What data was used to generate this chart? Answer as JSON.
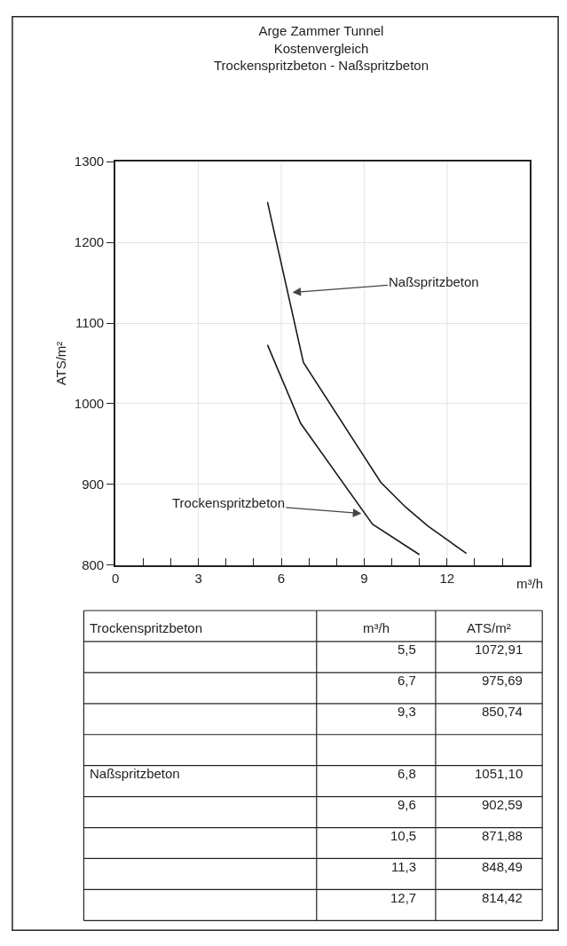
{
  "chart_data": [
    {
      "type": "line",
      "title": "Arge Zammer Tunnel\nKostenvergleich\nTrockenspritzbeton - Naßspritzbeton",
      "xlabel": "m³/h",
      "ylabel": "ATS/m²",
      "series": [
        {
          "color": "#1a1a1a",
          "x": [
            5.5,
            6.7,
            9.3,
            11.0
          ],
          "values": [
            1072.91,
            975.69,
            850.74,
            813
          ]
        },
        {
          "color": "#1a1a1a",
          "x": [
            5.5,
            6.8,
            9.6,
            10.5,
            11.3,
            12.7
          ],
          "values": [
            1250,
            1051.1,
            902.59,
            871.88,
            848.49,
            814.42
          ]
        }
      ],
      "annotations": [
        {
          "text": "Naßspritzbeton",
          "x": 6.4,
          "y": 1138
        },
        {
          "text": "Trockenspritzbeton",
          "x": 8.9,
          "y": 864
        }
      ],
      "xlim": [
        0,
        15
      ],
      "xticks": [
        0,
        {
          "value": 1,
          "label": null
        },
        {
          "value": 2,
          "label": null
        },
        3,
        {
          "value": 4,
          "label": null
        },
        {
          "value": 5,
          "label": null
        },
        6,
        {
          "value": 7,
          "label": null
        },
        {
          "value": 8,
          "label": null
        },
        9,
        {
          "value": 10,
          "label": null
        },
        {
          "value": 11,
          "label": null
        },
        12,
        {
          "value": 13,
          "label": null
        },
        {
          "value": 14,
          "label": null
        }
      ],
      "ylim": [
        800,
        1300
      ],
      "yticks": [
        800,
        900,
        1000,
        1100,
        1200,
        1300
      ],
      "grid": true,
      "marker": "none",
      "line_style": "solid"
    },
    {
      "type": "other",
      "annotations": [
        "Trockenspritzbeton",
        "m³/h",
        "ATS/m²",
        "5,5",
        "1072,91",
        "6,7",
        "975,69",
        "9,3",
        "850,74",
        "Naßspritzbeton",
        "6,8",
        "1051,10",
        "9,6",
        "902,59",
        "10,5",
        "871,88",
        "11,3",
        "848,49",
        "12,7",
        "814,42"
      ]
    }
  ]
}
